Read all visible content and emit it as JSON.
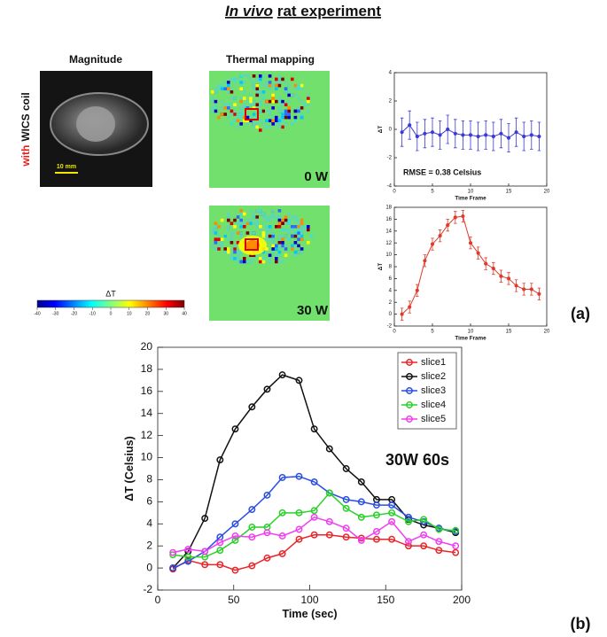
{
  "header": {
    "title_italic": "In vivo",
    "title_rest": "rat experiment"
  },
  "panel_a": {
    "label": "(a)",
    "col_magnitude": "Magnitude",
    "col_thermal": "Thermal mapping",
    "row_with": "with",
    "row_rest": "WICS coil",
    "scale_bar": "10 mm",
    "power_labels": [
      "0 W",
      "30 W"
    ],
    "colorbar": {
      "label": "ΔT",
      "ticks": [
        -40,
        -30,
        -20,
        -10,
        0,
        10,
        20,
        30,
        40
      ]
    }
  },
  "panel_b": {
    "label": "(b)"
  },
  "chart_data": [
    {
      "type": "line",
      "x_label": "Time Frame",
      "y_label": "ΔT",
      "annotation": "RMSE = 0.38 Celsius",
      "x": [
        1,
        2,
        3,
        4,
        5,
        6,
        7,
        8,
        9,
        10,
        11,
        12,
        13,
        14,
        15,
        16,
        17,
        18,
        19
      ],
      "series": [
        {
          "color": "#3b3bd6",
          "values": [
            -0.2,
            0.3,
            -0.5,
            -0.3,
            -0.2,
            -0.4,
            0,
            -0.3,
            -0.4,
            -0.4,
            -0.5,
            -0.4,
            -0.5,
            -0.3,
            -0.6,
            -0.2,
            -0.5,
            -0.4,
            -0.5
          ],
          "errors": [
            1,
            1,
            1,
            1,
            1,
            1,
            1,
            1,
            1,
            1,
            1,
            1,
            1,
            1,
            1,
            1,
            1,
            1,
            1
          ]
        }
      ],
      "xlim": [
        0,
        20
      ],
      "xticks": [
        0,
        5,
        10,
        15,
        20
      ],
      "ylim": [
        -4,
        4
      ],
      "yticks": [
        -4,
        -2,
        0,
        2,
        4
      ]
    },
    {
      "type": "line",
      "x_label": "Time Frame",
      "y_label": "ΔT",
      "x": [
        1,
        2,
        3,
        4,
        5,
        6,
        7,
        8,
        9,
        10,
        11,
        12,
        13,
        14,
        15,
        16,
        17,
        18,
        19
      ],
      "series": [
        {
          "color": "#e03a2a",
          "values": [
            0,
            1.2,
            4,
            9,
            11.8,
            13.2,
            15,
            16.3,
            16.5,
            12,
            10.3,
            8.5,
            7.7,
            6.4,
            6,
            4.8,
            4.2,
            4.2,
            3.4
          ],
          "errors": [
            1,
            1,
            1,
            1,
            1,
            1,
            1,
            1,
            1,
            1,
            1,
            1,
            1,
            1,
            1,
            1,
            1,
            1,
            1
          ]
        }
      ],
      "xlim": [
        0,
        20
      ],
      "xticks": [
        0,
        5,
        10,
        15,
        20
      ],
      "ylim": [
        -2,
        18
      ],
      "yticks": [
        -2,
        0,
        2,
        4,
        6,
        8,
        10,
        12,
        14,
        16,
        18
      ]
    },
    {
      "type": "line",
      "x_label": "Time (sec)",
      "y_label": "ΔT (Celsius)",
      "annotation": "30W 60s",
      "legend": "upper right",
      "x": [
        10,
        20,
        31,
        41,
        51,
        62,
        72,
        82,
        93,
        103,
        113,
        124,
        134,
        144,
        154,
        165,
        175,
        185,
        196
      ],
      "series": [
        {
          "name": "slice1",
          "color": "#e8262a",
          "values": [
            -0.1,
            0.7,
            0.3,
            0.3,
            -0.2,
            0.2,
            0.9,
            1.3,
            2.6,
            3.0,
            3.0,
            2.8,
            2.7,
            2.6,
            2.6,
            2.0,
            2.0,
            1.6,
            1.4
          ]
        },
        {
          "name": "slice2",
          "color": "#111111",
          "values": [
            0,
            1.5,
            4.5,
            9.8,
            12.6,
            14.6,
            16.2,
            17.5,
            17.0,
            12.6,
            10.8,
            9.0,
            7.8,
            6.2,
            6.2,
            4.4,
            3.9,
            3.6,
            3.2
          ]
        },
        {
          "name": "slice3",
          "color": "#2a4ee0",
          "values": [
            0,
            0.6,
            1.5,
            2.8,
            4.0,
            5.3,
            6.6,
            8.2,
            8.3,
            7.8,
            6.8,
            6.2,
            6.0,
            5.7,
            5.7,
            4.6,
            4.2,
            3.6,
            3.3
          ]
        },
        {
          "name": "slice4",
          "color": "#2ad12a",
          "values": [
            1.2,
            1.0,
            1.0,
            1.6,
            2.5,
            3.7,
            3.7,
            5.0,
            5.0,
            5.2,
            6.8,
            5.4,
            4.6,
            4.8,
            5.0,
            4.2,
            4.4,
            3.5,
            3.4
          ]
        },
        {
          "name": "slice5",
          "color": "#f03ef0",
          "values": [
            1.4,
            1.7,
            1.5,
            2.3,
            2.9,
            2.8,
            3.2,
            2.9,
            3.5,
            4.6,
            4.2,
            3.6,
            2.5,
            3.3,
            4.2,
            2.4,
            3.0,
            2.4,
            2.0
          ]
        }
      ],
      "xlim": [
        0,
        200
      ],
      "xticks": [
        0,
        50,
        100,
        150,
        200
      ],
      "ylim": [
        -2,
        20
      ],
      "yticks": [
        -2,
        0,
        2,
        4,
        6,
        8,
        10,
        12,
        14,
        16,
        18,
        20
      ]
    }
  ]
}
